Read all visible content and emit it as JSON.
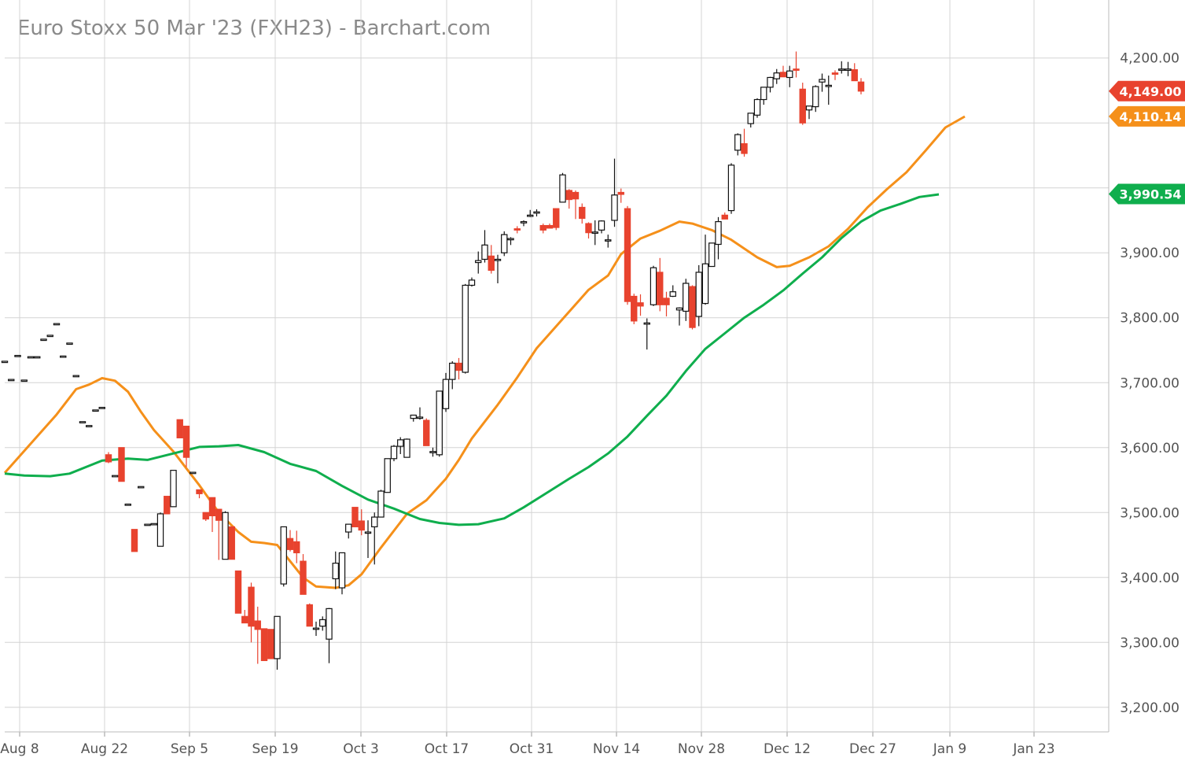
{
  "chart_data": {
    "type": "candlestick",
    "title": "Euro Stoxx 50 Mar '23 (FXH23) - Barchart.com",
    "x_ticks": [
      "Aug 8",
      "Aug 22",
      "Sep 5",
      "Sep 19",
      "Oct 3",
      "Oct 17",
      "Oct 31",
      "Nov 14",
      "Nov 28",
      "Dec 12",
      "Dec 27",
      "Jan 9",
      "Jan 23"
    ],
    "y_ticks": [
      "3,200.00",
      "3,300.00",
      "3,400.00",
      "3,500.00",
      "3,600.00",
      "3,700.00",
      "3,800.00",
      "3,900.00",
      "4,200.00"
    ],
    "ylim": [
      3160,
      4240
    ],
    "y_unit_ticks": [
      3200,
      3300,
      3400,
      3500,
      3600,
      3700,
      3800,
      3900,
      4000,
      4100,
      4200
    ],
    "grid": true,
    "price_badges": [
      {
        "label": "4,149.00",
        "value": 4149.0,
        "color": "#e8432e"
      },
      {
        "label": "4,110.14",
        "value": 4110.14,
        "color": "#f5901a"
      },
      {
        "label": "3,990.54",
        "value": 3990.54,
        "color": "#0fae4d"
      }
    ],
    "candles": [
      {
        "o": 3733,
        "h": 3733,
        "l": 3733,
        "c": 3733
      },
      {
        "o": 3705,
        "h": 3705,
        "l": 3705,
        "c": 3705
      },
      {
        "o": 3742,
        "h": 3742,
        "l": 3742,
        "c": 3742
      },
      {
        "o": 3704,
        "h": 3704,
        "l": 3704,
        "c": 3704
      },
      {
        "o": 3740,
        "h": 3740,
        "l": 3740,
        "c": 3740
      },
      {
        "o": 3740,
        "h": 3740,
        "l": 3740,
        "c": 3740
      },
      {
        "o": 3767,
        "h": 3767,
        "l": 3767,
        "c": 3767
      },
      {
        "o": 3773,
        "h": 3773,
        "l": 3773,
        "c": 3773
      },
      {
        "o": 3791,
        "h": 3791,
        "l": 3791,
        "c": 3791
      },
      {
        "o": 3741,
        "h": 3741,
        "l": 3741,
        "c": 3741
      },
      {
        "o": 3761,
        "h": 3761,
        "l": 3761,
        "c": 3761
      },
      {
        "o": 3711,
        "h": 3711,
        "l": 3711,
        "c": 3711
      },
      {
        "o": 3640,
        "h": 3640,
        "l": 3640,
        "c": 3640
      },
      {
        "o": 3634,
        "h": 3634,
        "l": 3634,
        "c": 3634
      },
      {
        "o": 3658,
        "h": 3658,
        "l": 3658,
        "c": 3658
      },
      {
        "o": 3662,
        "h": 3662,
        "l": 3662,
        "c": 3662
      },
      {
        "o": 3589,
        "h": 3593,
        "l": 3576,
        "c": 3578
      },
      {
        "o": 3557,
        "h": 3557,
        "l": 3557,
        "c": 3557
      },
      {
        "o": 3600,
        "h": 3600,
        "l": 3548,
        "c": 3548
      },
      {
        "o": 3513,
        "h": 3513,
        "l": 3513,
        "c": 3513
      },
      {
        "o": 3474,
        "h": 3474,
        "l": 3440,
        "c": 3440
      },
      {
        "o": 3540,
        "h": 3540,
        "l": 3540,
        "c": 3540
      },
      {
        "o": 3482,
        "h": 3482,
        "l": 3482,
        "c": 3482
      },
      {
        "o": 3483,
        "h": 3483,
        "l": 3483,
        "c": 3483
      },
      {
        "o": 3448,
        "h": 3500,
        "l": 3448,
        "c": 3498
      },
      {
        "o": 3525,
        "h": 3525,
        "l": 3498,
        "c": 3498
      },
      {
        "o": 3509,
        "h": 3565,
        "l": 3509,
        "c": 3565
      },
      {
        "o": 3643,
        "h": 3643,
        "l": 3615,
        "c": 3615
      },
      {
        "o": 3633,
        "h": 3633,
        "l": 3570,
        "c": 3585
      },
      {
        "o": 3562,
        "h": 3562,
        "l": 3562,
        "c": 3562
      },
      {
        "o": 3535,
        "h": 3535,
        "l": 3522,
        "c": 3529
      },
      {
        "o": 3500,
        "h": 3500,
        "l": 3487,
        "c": 3490
      },
      {
        "o": 3523,
        "h": 3523,
        "l": 3470,
        "c": 3495
      },
      {
        "o": 3505,
        "h": 3505,
        "l": 3427,
        "c": 3488
      },
      {
        "o": 3428,
        "h": 3502,
        "l": 3428,
        "c": 3500
      },
      {
        "o": 3478,
        "h": 3478,
        "l": 3428,
        "c": 3428
      },
      {
        "o": 3410,
        "h": 3410,
        "l": 3345,
        "c": 3345
      },
      {
        "o": 3340,
        "h": 3350,
        "l": 3330,
        "c": 3330
      },
      {
        "o": 3385,
        "h": 3392,
        "l": 3300,
        "c": 3325
      },
      {
        "o": 3333,
        "h": 3355,
        "l": 3267,
        "c": 3320
      },
      {
        "o": 3321,
        "h": 3321,
        "l": 3272,
        "c": 3272
      },
      {
        "o": 3320,
        "h": 3320,
        "l": 3275,
        "c": 3275
      },
      {
        "o": 3275,
        "h": 3340,
        "l": 3258,
        "c": 3340
      },
      {
        "o": 3390,
        "h": 3478,
        "l": 3386,
        "c": 3478
      },
      {
        "o": 3460,
        "h": 3473,
        "l": 3440,
        "c": 3443
      },
      {
        "o": 3455,
        "h": 3472,
        "l": 3422,
        "c": 3438
      },
      {
        "o": 3425,
        "h": 3436,
        "l": 3374,
        "c": 3374
      },
      {
        "o": 3358,
        "h": 3360,
        "l": 3325,
        "c": 3325
      },
      {
        "o": 3322,
        "h": 3332,
        "l": 3310,
        "c": 3322
      },
      {
        "o": 3325,
        "h": 3340,
        "l": 3318,
        "c": 3335
      },
      {
        "o": 3305,
        "h": 3353,
        "l": 3268,
        "c": 3352
      },
      {
        "o": 3398,
        "h": 3440,
        "l": 3382,
        "c": 3422
      },
      {
        "o": 3384,
        "h": 3437,
        "l": 3374,
        "c": 3438
      },
      {
        "o": 3470,
        "h": 3478,
        "l": 3460,
        "c": 3482
      },
      {
        "o": 3508,
        "h": 3508,
        "l": 3478,
        "c": 3478
      },
      {
        "o": 3487,
        "h": 3505,
        "l": 3465,
        "c": 3473
      },
      {
        "o": 3470,
        "h": 3488,
        "l": 3430,
        "c": 3470
      },
      {
        "o": 3478,
        "h": 3500,
        "l": 3420,
        "c": 3493
      },
      {
        "o": 3493,
        "h": 3535,
        "l": 3493,
        "c": 3533
      },
      {
        "o": 3531,
        "h": 3583,
        "l": 3531,
        "c": 3583
      },
      {
        "o": 3583,
        "h": 3604,
        "l": 3579,
        "c": 3602
      },
      {
        "o": 3602,
        "h": 3616,
        "l": 3590,
        "c": 3612
      },
      {
        "o": 3585,
        "h": 3614,
        "l": 3585,
        "c": 3613
      },
      {
        "o": 3645,
        "h": 3650,
        "l": 3640,
        "c": 3650
      },
      {
        "o": 3647,
        "h": 3662,
        "l": 3643,
        "c": 3647
      },
      {
        "o": 3642,
        "h": 3645,
        "l": 3603,
        "c": 3603
      },
      {
        "o": 3594,
        "h": 3600,
        "l": 3586,
        "c": 3594
      },
      {
        "o": 3589,
        "h": 3687,
        "l": 3586,
        "c": 3687
      },
      {
        "o": 3660,
        "h": 3715,
        "l": 3655,
        "c": 3705
      },
      {
        "o": 3705,
        "h": 3733,
        "l": 3690,
        "c": 3730
      },
      {
        "o": 3730,
        "h": 3738,
        "l": 3705,
        "c": 3719
      },
      {
        "o": 3716,
        "h": 3852,
        "l": 3714,
        "c": 3850
      },
      {
        "o": 3850,
        "h": 3862,
        "l": 3848,
        "c": 3858
      },
      {
        "o": 3885,
        "h": 3902,
        "l": 3868,
        "c": 3888
      },
      {
        "o": 3890,
        "h": 3935,
        "l": 3885,
        "c": 3912
      },
      {
        "o": 3895,
        "h": 3912,
        "l": 3868,
        "c": 3873
      },
      {
        "o": 3890,
        "h": 3897,
        "l": 3853,
        "c": 3890
      },
      {
        "o": 3900,
        "h": 3933,
        "l": 3895,
        "c": 3928
      },
      {
        "o": 3920,
        "h": 3924,
        "l": 3912,
        "c": 3922
      },
      {
        "o": 3937,
        "h": 3941,
        "l": 3930,
        "c": 3935
      },
      {
        "o": 3946,
        "h": 3950,
        "l": 3941,
        "c": 3948
      },
      {
        "o": 3958,
        "h": 3966,
        "l": 3955,
        "c": 3958
      },
      {
        "o": 3962,
        "h": 3967,
        "l": 3956,
        "c": 3963
      },
      {
        "o": 3942,
        "h": 3945,
        "l": 3930,
        "c": 3935
      },
      {
        "o": 3942,
        "h": 3945,
        "l": 3938,
        "c": 3938
      },
      {
        "o": 3968,
        "h": 3968,
        "l": 3935,
        "c": 3939
      },
      {
        "o": 3978,
        "h": 4023,
        "l": 3978,
        "c": 4020
      },
      {
        "o": 3996,
        "h": 3998,
        "l": 3968,
        "c": 3982
      },
      {
        "o": 3993,
        "h": 3996,
        "l": 3952,
        "c": 3983
      },
      {
        "o": 3970,
        "h": 3976,
        "l": 3945,
        "c": 3953
      },
      {
        "o": 3945,
        "h": 3947,
        "l": 3922,
        "c": 3931
      },
      {
        "o": 3932,
        "h": 3950,
        "l": 3912,
        "c": 3932
      },
      {
        "o": 3935,
        "h": 3950,
        "l": 3930,
        "c": 3949
      },
      {
        "o": 3920,
        "h": 3928,
        "l": 3908,
        "c": 3920
      },
      {
        "o": 3950,
        "h": 4045,
        "l": 3940,
        "c": 3989
      },
      {
        "o": 3993,
        "h": 3999,
        "l": 3977,
        "c": 3990
      },
      {
        "o": 3968,
        "h": 3972,
        "l": 3820,
        "c": 3825
      },
      {
        "o": 3833,
        "h": 3837,
        "l": 3790,
        "c": 3795
      },
      {
        "o": 3823,
        "h": 3836,
        "l": 3803,
        "c": 3818
      },
      {
        "o": 3792,
        "h": 3799,
        "l": 3751,
        "c": 3792
      },
      {
        "o": 3820,
        "h": 3880,
        "l": 3818,
        "c": 3877
      },
      {
        "o": 3870,
        "h": 3892,
        "l": 3810,
        "c": 3820
      },
      {
        "o": 3830,
        "h": 3840,
        "l": 3802,
        "c": 3820
      },
      {
        "o": 3833,
        "h": 3850,
        "l": 3832,
        "c": 3840
      },
      {
        "o": 3812,
        "h": 3816,
        "l": 3788,
        "c": 3815
      },
      {
        "o": 3810,
        "h": 3860,
        "l": 3795,
        "c": 3853
      },
      {
        "o": 3848,
        "h": 3850,
        "l": 3782,
        "c": 3785
      },
      {
        "o": 3802,
        "h": 3881,
        "l": 3787,
        "c": 3870
      },
      {
        "o": 3822,
        "h": 3928,
        "l": 3820,
        "c": 3883
      },
      {
        "o": 3879,
        "h": 3915,
        "l": 3879,
        "c": 3915
      },
      {
        "o": 3913,
        "h": 3955,
        "l": 3890,
        "c": 3948
      },
      {
        "o": 3958,
        "h": 3962,
        "l": 3952,
        "c": 3952
      },
      {
        "o": 3965,
        "h": 4038,
        "l": 3960,
        "c": 4035
      },
      {
        "o": 4058,
        "h": 4084,
        "l": 4050,
        "c": 4082
      },
      {
        "o": 4068,
        "h": 4091,
        "l": 4048,
        "c": 4053
      },
      {
        "o": 4099,
        "h": 4113,
        "l": 4093,
        "c": 4115
      },
      {
        "o": 4112,
        "h": 4138,
        "l": 4108,
        "c": 4136
      },
      {
        "o": 4136,
        "h": 4155,
        "l": 4128,
        "c": 4155
      },
      {
        "o": 4155,
        "h": 4171,
        "l": 4147,
        "c": 4170
      },
      {
        "o": 4168,
        "h": 4183,
        "l": 4160,
        "c": 4177
      },
      {
        "o": 4178,
        "h": 4188,
        "l": 4172,
        "c": 4171
      },
      {
        "o": 4170,
        "h": 4188,
        "l": 4155,
        "c": 4180
      },
      {
        "o": 4183,
        "h": 4210,
        "l": 4170,
        "c": 4182
      },
      {
        "o": 4152,
        "h": 4162,
        "l": 4097,
        "c": 4100
      },
      {
        "o": 4120,
        "h": 4126,
        "l": 4106,
        "c": 4126
      },
      {
        "o": 4125,
        "h": 4158,
        "l": 4117,
        "c": 4156
      },
      {
        "o": 4163,
        "h": 4176,
        "l": 4148,
        "c": 4167
      },
      {
        "o": 4157,
        "h": 4173,
        "l": 4128,
        "c": 4158
      },
      {
        "o": 4177,
        "h": 4181,
        "l": 4166,
        "c": 4175
      },
      {
        "o": 4182,
        "h": 4195,
        "l": 4176,
        "c": 4183
      },
      {
        "o": 4181,
        "h": 4194,
        "l": 4172,
        "c": 4183
      },
      {
        "o": 4182,
        "h": 4192,
        "l": 4165,
        "c": 4165
      },
      {
        "o": 4163,
        "h": 4169,
        "l": 4144,
        "c": 4149
      }
    ],
    "series": [
      {
        "label": "orange moving average",
        "color": "#f5901a",
        "points": [
          [
            0,
            3561
          ],
          [
            8,
            3651
          ],
          [
            11,
            3690
          ],
          [
            13,
            3697
          ],
          [
            15,
            3707
          ],
          [
            17,
            3703
          ],
          [
            19,
            3686
          ],
          [
            21,
            3655
          ],
          [
            23,
            3627
          ],
          [
            26,
            3594
          ],
          [
            28,
            3568
          ],
          [
            30,
            3542
          ],
          [
            33,
            3500
          ],
          [
            36,
            3470
          ],
          [
            38,
            3455
          ],
          [
            40,
            3453
          ],
          [
            42,
            3450
          ],
          [
            44,
            3425
          ],
          [
            46,
            3400
          ],
          [
            48,
            3386
          ],
          [
            51,
            3384
          ],
          [
            53,
            3388
          ],
          [
            55,
            3405
          ],
          [
            58,
            3446
          ],
          [
            62,
            3498
          ],
          [
            65,
            3519
          ],
          [
            68,
            3552
          ],
          [
            70,
            3581
          ],
          [
            72,
            3614
          ],
          [
            76,
            3666
          ],
          [
            79,
            3708
          ],
          [
            82,
            3753
          ],
          [
            86,
            3798
          ],
          [
            90,
            3843
          ],
          [
            93,
            3865
          ],
          [
            95,
            3898
          ],
          [
            98,
            3922
          ],
          [
            101,
            3934
          ],
          [
            104,
            3948
          ],
          [
            106,
            3945
          ],
          [
            109,
            3935
          ],
          [
            112,
            3920
          ],
          [
            116,
            3893
          ],
          [
            119,
            3878
          ],
          [
            121,
            3880
          ],
          [
            124,
            3893
          ],
          [
            127,
            3910
          ],
          [
            130,
            3937
          ],
          [
            133,
            3970
          ],
          [
            136,
            3998
          ],
          [
            139,
            4024
          ],
          [
            142,
            4058
          ],
          [
            145,
            4093
          ],
          [
            148,
            4110
          ]
        ]
      },
      {
        "label": "green moving average",
        "color": "#0fae4d",
        "points": [
          [
            0,
            3560
          ],
          [
            3,
            3557
          ],
          [
            7,
            3556
          ],
          [
            10,
            3560
          ],
          [
            13,
            3572
          ],
          [
            15,
            3580
          ],
          [
            19,
            3583
          ],
          [
            22,
            3581
          ],
          [
            26,
            3591
          ],
          [
            30,
            3601
          ],
          [
            33,
            3602
          ],
          [
            36,
            3604
          ],
          [
            40,
            3593
          ],
          [
            44,
            3575
          ],
          [
            48,
            3564
          ],
          [
            52,
            3541
          ],
          [
            56,
            3520
          ],
          [
            60,
            3506
          ],
          [
            64,
            3490
          ],
          [
            67,
            3484
          ],
          [
            70,
            3481
          ],
          [
            73,
            3482
          ],
          [
            77,
            3491
          ],
          [
            80,
            3508
          ],
          [
            84,
            3533
          ],
          [
            87,
            3552
          ],
          [
            90,
            3570
          ],
          [
            93,
            3591
          ],
          [
            96,
            3617
          ],
          [
            99,
            3649
          ],
          [
            102,
            3680
          ],
          [
            105,
            3718
          ],
          [
            108,
            3752
          ],
          [
            111,
            3776
          ],
          [
            114,
            3800
          ],
          [
            117,
            3820
          ],
          [
            120,
            3842
          ],
          [
            123,
            3868
          ],
          [
            126,
            3893
          ],
          [
            129,
            3923
          ],
          [
            132,
            3948
          ],
          [
            135,
            3965
          ],
          [
            138,
            3975
          ],
          [
            141,
            3986
          ],
          [
            144,
            3990
          ]
        ]
      }
    ]
  }
}
